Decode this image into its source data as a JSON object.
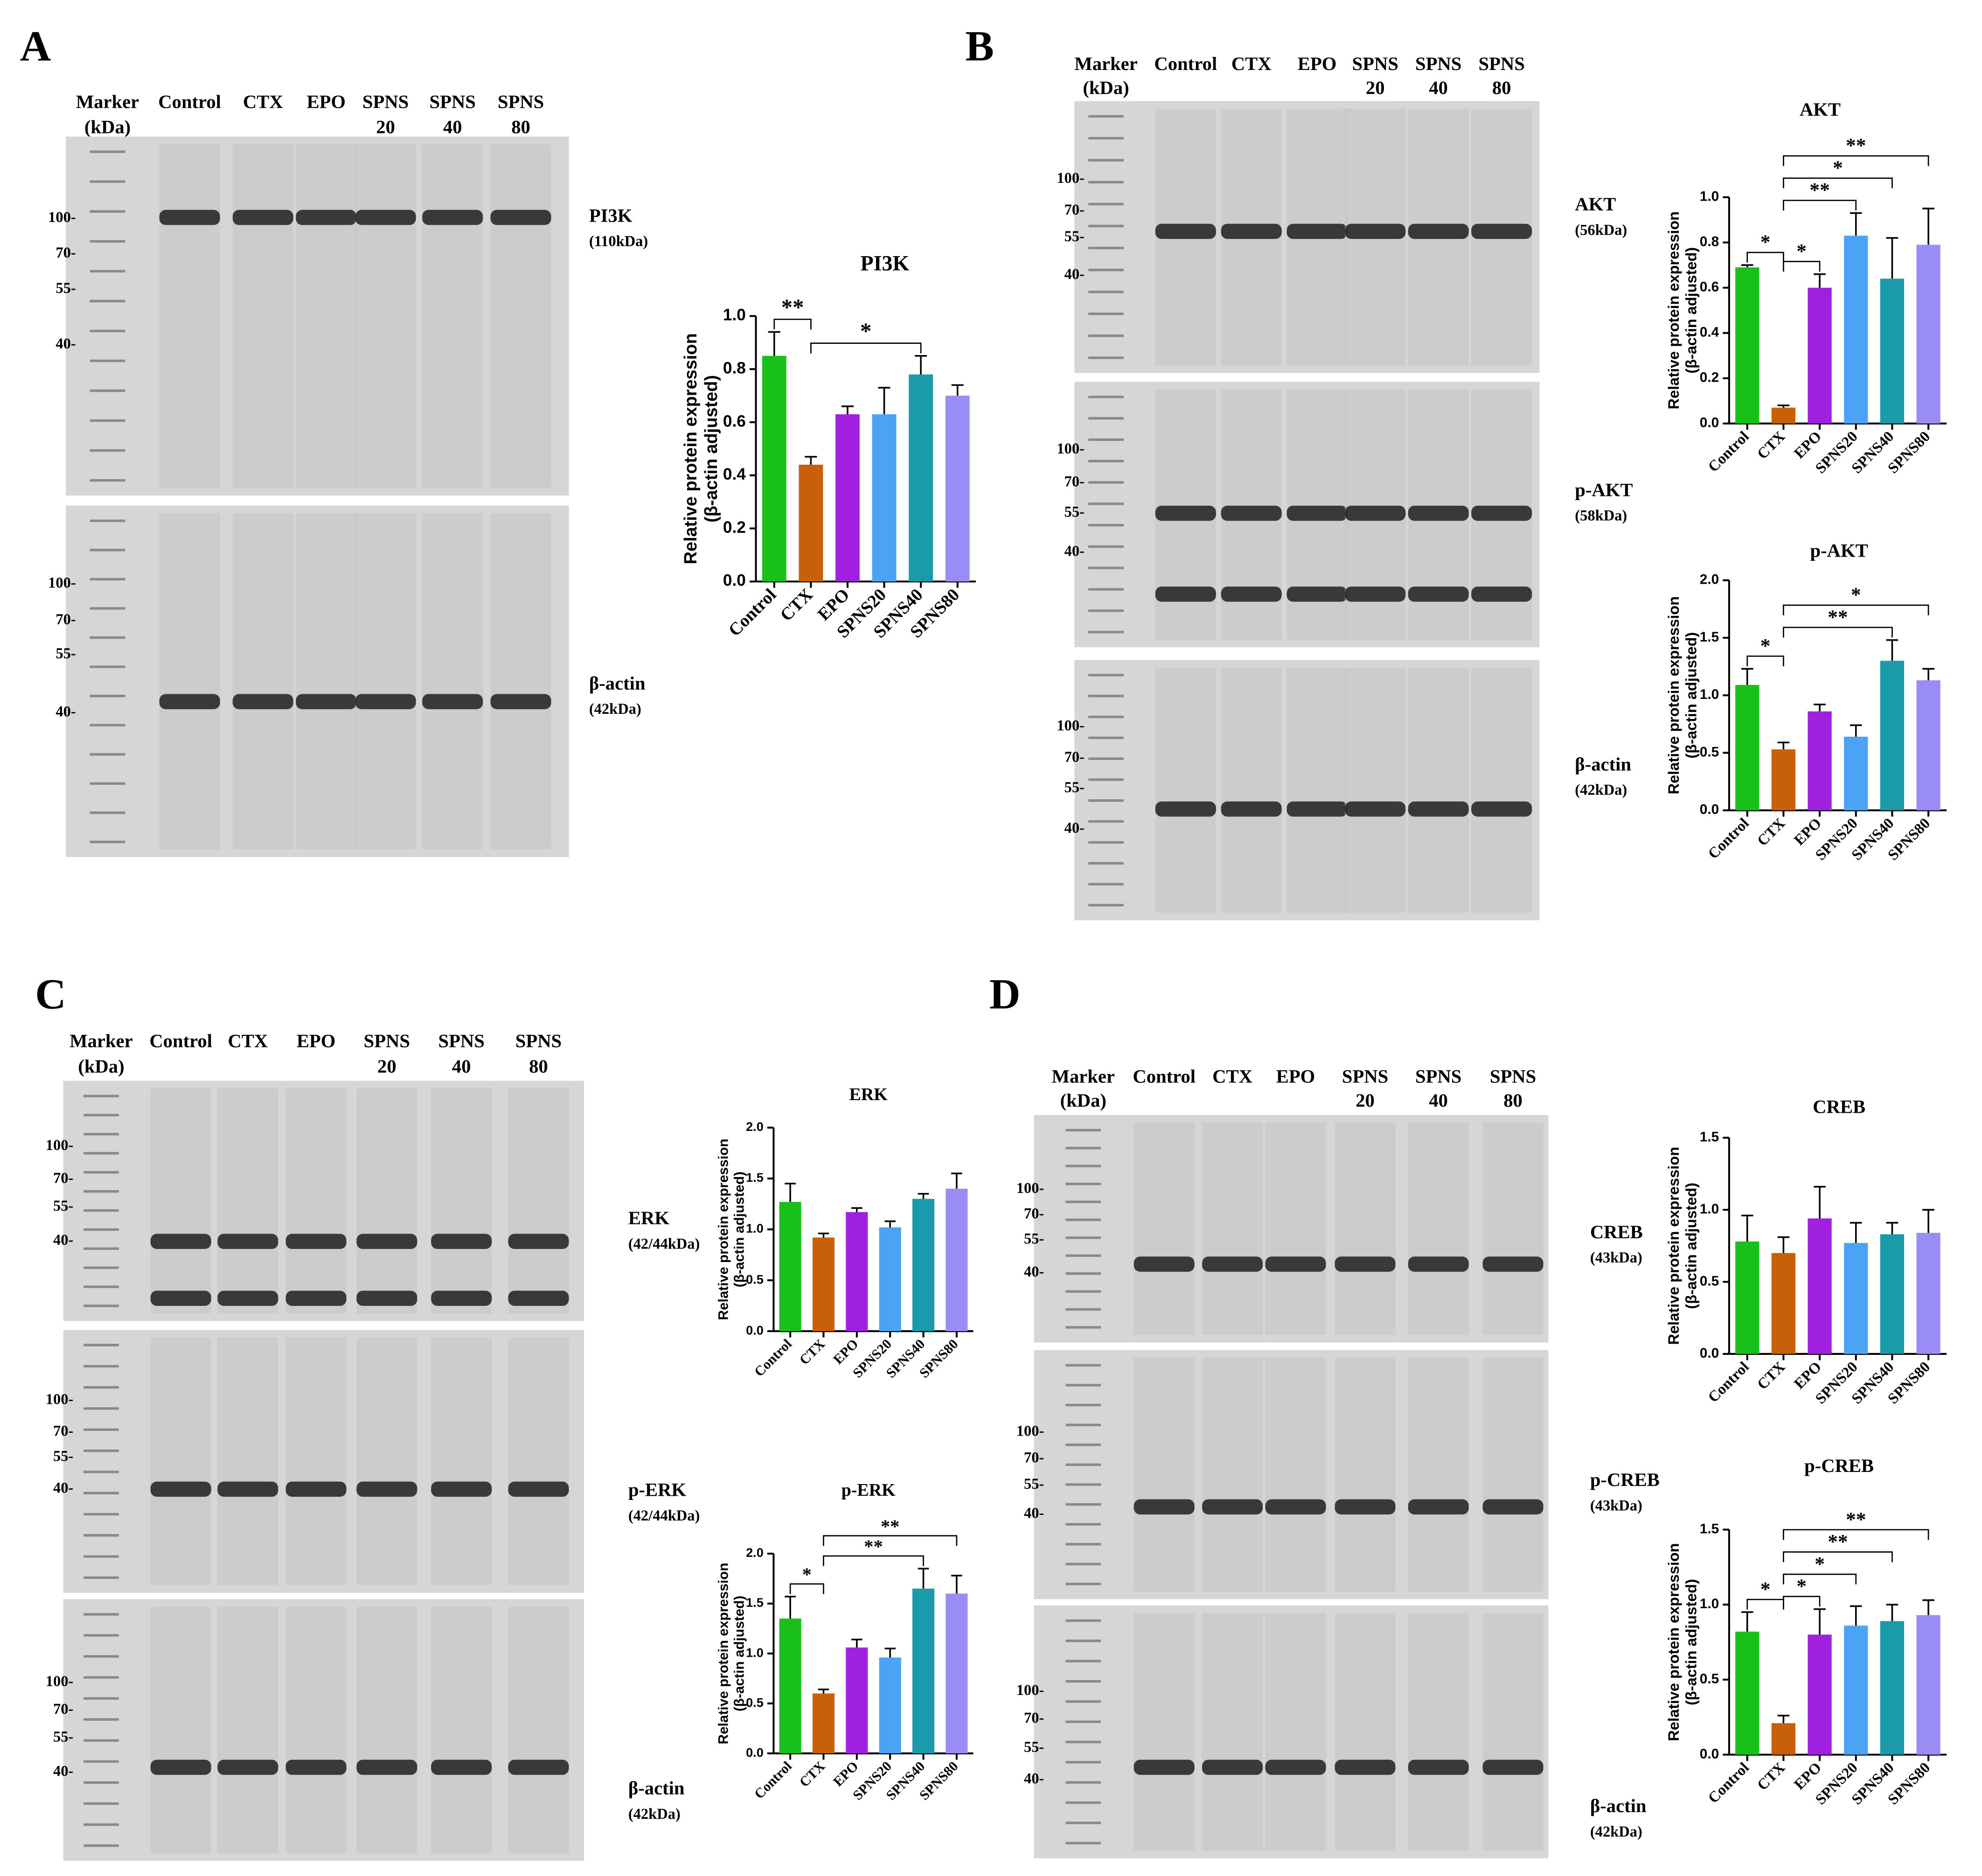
{
  "panels": [
    {
      "letter": "A",
      "lanes": [
        [
          "Marker",
          "(kDa)"
        ],
        [
          "Control"
        ],
        [
          "CTX"
        ],
        [
          "EPO"
        ],
        [
          "SPNS",
          "20"
        ],
        [
          "SPNS",
          "40"
        ],
        [
          "SPNS",
          "80"
        ]
      ],
      "strips": [
        {
          "protein": "PI3K",
          "size": "(110kDa)",
          "markers": [
            "100-",
            "70-",
            "55-",
            "40-"
          ]
        },
        {
          "protein": "β-actin",
          "size": "(42kDa)",
          "markers": [
            "100-",
            "70-",
            "55-",
            "40-"
          ]
        }
      ]
    },
    {
      "letter": "B",
      "lanes": [
        [
          "Marker",
          "(kDa)"
        ],
        [
          "Control"
        ],
        [
          "CTX"
        ],
        [
          "EPO"
        ],
        [
          "SPNS",
          "20"
        ],
        [
          "SPNS",
          "40"
        ],
        [
          "SPNS",
          "80"
        ]
      ],
      "strips": [
        {
          "protein": "AKT",
          "size": "(56kDa)",
          "markers": [
            "100-",
            "70-",
            "55-",
            "40-"
          ]
        },
        {
          "protein": "p-AKT",
          "size": "(58kDa)",
          "markers": [
            "100-",
            "70-",
            "55-",
            "40-"
          ]
        },
        {
          "protein": "β-actin",
          "size": "(42kDa)",
          "markers": [
            "100-",
            "70-",
            "55-",
            "40-"
          ]
        }
      ]
    },
    {
      "letter": "C",
      "lanes": [
        [
          "Marker",
          "(kDa)"
        ],
        [
          "Control"
        ],
        [
          "CTX"
        ],
        [
          "EPO"
        ],
        [
          "SPNS",
          "20"
        ],
        [
          "SPNS",
          "40"
        ],
        [
          "SPNS",
          "80"
        ]
      ],
      "strips": [
        {
          "protein": "ERK",
          "size": "(42/44kDa)",
          "markers": [
            "100-",
            "70-",
            "55-",
            "40-"
          ]
        },
        {
          "protein": "p-ERK",
          "size": "(42/44kDa)",
          "markers": [
            "100-",
            "70-",
            "55-",
            "40-"
          ]
        },
        {
          "protein": "β-actin",
          "size": "(42kDa)",
          "markers": [
            "100-",
            "70-",
            "55-",
            "40-"
          ]
        }
      ]
    },
    {
      "letter": "D",
      "lanes": [
        [
          "Marker",
          "(kDa)"
        ],
        [
          "Control"
        ],
        [
          "CTX"
        ],
        [
          "EPO"
        ],
        [
          "SPNS",
          "20"
        ],
        [
          "SPNS",
          "40"
        ],
        [
          "SPNS",
          "80"
        ]
      ],
      "strips": [
        {
          "protein": "CREB",
          "size": "(43kDa)",
          "markers": [
            "100-",
            "70-",
            "55-",
            "40-"
          ]
        },
        {
          "protein": "p-CREB",
          "size": "(43kDa)",
          "markers": [
            "100-",
            "70-",
            "55-",
            "40-"
          ]
        },
        {
          "protein": "β-actin",
          "size": "(42kDa)",
          "markers": [
            "100-",
            "70-",
            "55-",
            "40-"
          ]
        }
      ]
    }
  ],
  "chart_data": [
    {
      "type": "bar",
      "title": "PI3K",
      "ylabel": [
        "Relative protein expression",
        "(β-actin adjusted)"
      ],
      "categories": [
        "Control",
        "CTX",
        "EPO",
        "SPNS20",
        "SPNS40",
        "SPNS80"
      ],
      "values": [
        0.85,
        0.44,
        0.63,
        0.63,
        0.78,
        0.7
      ],
      "errors": [
        0.09,
        0.03,
        0.03,
        0.1,
        0.07,
        0.04
      ],
      "colors": [
        "#19c019",
        "#c8600a",
        "#a020e0",
        "#4aa3f5",
        "#1b9aaa",
        "#9a8cf5"
      ],
      "ylim": [
        0,
        1
      ],
      "yticks": [
        {
          "value": 0,
          "label": "0.0"
        },
        0.2,
        0.4,
        0.6,
        0.8,
        {
          "value": 1,
          "label": "1.0"
        }
      ],
      "significance": [
        {
          "from": 0,
          "to": 1,
          "label": "**"
        },
        {
          "from": 1,
          "to": 4,
          "label": "*"
        }
      ]
    },
    {
      "type": "bar",
      "title": "AKT",
      "ylabel": [
        "Relative protein expression",
        "(β-actin adjusted)"
      ],
      "categories": [
        "Control",
        "CTX",
        "EPO",
        "SPNS20",
        "SPNS40",
        "SPNS80"
      ],
      "values": [
        0.69,
        0.07,
        0.6,
        0.83,
        0.64,
        0.79
      ],
      "errors": [
        0.01,
        0.01,
        0.06,
        0.1,
        0.18,
        0.16
      ],
      "colors": [
        "#19c019",
        "#c8600a",
        "#a020e0",
        "#4aa3f5",
        "#1b9aaa",
        "#9a8cf5"
      ],
      "ylim": [
        0,
        1
      ],
      "yticks": [
        {
          "value": 0,
          "label": "0.0"
        },
        0.2,
        0.4,
        0.6,
        0.8,
        {
          "value": 1,
          "label": "1.0"
        }
      ],
      "significance": [
        {
          "from": 0,
          "to": 1,
          "label": "*"
        },
        {
          "from": 1,
          "to": 2,
          "label": "*"
        },
        {
          "from": 1,
          "to": 3,
          "label": "**"
        },
        {
          "from": 1,
          "to": 4,
          "label": "*"
        },
        {
          "from": 1,
          "to": 5,
          "label": "**"
        }
      ]
    },
    {
      "type": "bar",
      "title": "p-AKT",
      "ylabel": [
        "Relative protein expression",
        "(β-actin adjusted)"
      ],
      "categories": [
        "Control",
        "CTX",
        "EPO",
        "SPNS20",
        "SPNS40",
        "SPNS80"
      ],
      "values": [
        1.09,
        0.53,
        0.86,
        0.64,
        1.3,
        1.13
      ],
      "errors": [
        0.14,
        0.06,
        0.06,
        0.1,
        0.18,
        0.1
      ],
      "colors": [
        "#19c019",
        "#c8600a",
        "#a020e0",
        "#4aa3f5",
        "#1b9aaa",
        "#9a8cf5"
      ],
      "ylim": [
        0,
        2
      ],
      "yticks": [
        {
          "value": 0,
          "label": "0.0"
        },
        0.5,
        {
          "value": 1,
          "label": "1.0"
        },
        1.5,
        {
          "value": 2,
          "label": "2.0"
        }
      ],
      "significance": [
        {
          "from": 0,
          "to": 1,
          "label": "*"
        },
        {
          "from": 1,
          "to": 4,
          "label": "**"
        },
        {
          "from": 1,
          "to": 5,
          "label": "*"
        }
      ]
    },
    {
      "type": "bar",
      "title": "ERK",
      "ylabel": [
        "Relative protein expression",
        "(β-actin adjusted)"
      ],
      "categories": [
        "Control",
        "CTX",
        "EPO",
        "SPNS20",
        "SPNS40",
        "SPNS80"
      ],
      "values": [
        1.27,
        0.92,
        1.17,
        1.02,
        1.3,
        1.4
      ],
      "errors": [
        0.18,
        0.04,
        0.04,
        0.06,
        0.05,
        0.15
      ],
      "colors": [
        "#19c019",
        "#c8600a",
        "#a020e0",
        "#4aa3f5",
        "#1b9aaa",
        "#9a8cf5"
      ],
      "ylim": [
        0,
        2
      ],
      "yticks": [
        {
          "value": 0,
          "label": "0.0"
        },
        0.5,
        {
          "value": 1,
          "label": "1.0"
        },
        1.5,
        {
          "value": 2,
          "label": "2.0"
        }
      ],
      "significance": []
    },
    {
      "type": "bar",
      "title": "p-ERK",
      "ylabel": [
        "Relative protein expression",
        "(β-actin adjusted)"
      ],
      "categories": [
        "Control",
        "CTX",
        "EPO",
        "SPNS20",
        "SPNS40",
        "SPNS80"
      ],
      "values": [
        1.35,
        0.6,
        1.06,
        0.96,
        1.65,
        1.6
      ],
      "errors": [
        0.22,
        0.04,
        0.08,
        0.09,
        0.2,
        0.18
      ],
      "colors": [
        "#19c019",
        "#c8600a",
        "#a020e0",
        "#4aa3f5",
        "#1b9aaa",
        "#9a8cf5"
      ],
      "ylim": [
        0,
        2
      ],
      "yticks": [
        {
          "value": 0,
          "label": "0.0"
        },
        0.5,
        {
          "value": 1,
          "label": "1.0"
        },
        1.5,
        {
          "value": 2,
          "label": "2.0"
        }
      ],
      "significance": [
        {
          "from": 0,
          "to": 1,
          "label": "*"
        },
        {
          "from": 1,
          "to": 4,
          "label": "**"
        },
        {
          "from": 1,
          "to": 5,
          "label": "**"
        }
      ]
    },
    {
      "type": "bar",
      "title": "CREB",
      "ylabel": [
        "Relative protein expression",
        "(β-actin adjusted)"
      ],
      "categories": [
        "Control",
        "CTX",
        "EPO",
        "SPNS20",
        "SPNS40",
        "SPNS80"
      ],
      "values": [
        0.78,
        0.7,
        0.94,
        0.77,
        0.83,
        0.84
      ],
      "errors": [
        0.18,
        0.11,
        0.22,
        0.14,
        0.08,
        0.16
      ],
      "colors": [
        "#19c019",
        "#c8600a",
        "#a020e0",
        "#4aa3f5",
        "#1b9aaa",
        "#9a8cf5"
      ],
      "ylim": [
        0,
        1.5
      ],
      "yticks": [
        {
          "value": 0,
          "label": "0.0"
        },
        0.5,
        {
          "value": 1,
          "label": "1.0"
        },
        1.5
      ],
      "significance": []
    },
    {
      "type": "bar",
      "title": "p-CREB",
      "ylabel": [
        "Relative protein expression",
        "(β-actin adjusted)"
      ],
      "categories": [
        "Control",
        "CTX",
        "EPO",
        "SPNS20",
        "SPNS40",
        "SPNS80"
      ],
      "values": [
        0.82,
        0.21,
        0.8,
        0.86,
        0.89,
        0.93
      ],
      "errors": [
        0.13,
        0.05,
        0.17,
        0.13,
        0.11,
        0.1
      ],
      "colors": [
        "#19c019",
        "#c8600a",
        "#a020e0",
        "#4aa3f5",
        "#1b9aaa",
        "#9a8cf5"
      ],
      "ylim": [
        0,
        1.5
      ],
      "yticks": [
        {
          "value": 0,
          "label": "0.0"
        },
        0.5,
        {
          "value": 1,
          "label": "1.0"
        },
        1.5
      ],
      "significance": [
        {
          "from": 0,
          "to": 1,
          "label": "*"
        },
        {
          "from": 1,
          "to": 2,
          "label": "*"
        },
        {
          "from": 1,
          "to": 3,
          "label": "*"
        },
        {
          "from": 1,
          "to": 4,
          "label": "**"
        },
        {
          "from": 1,
          "to": 5,
          "label": "**"
        }
      ]
    }
  ]
}
